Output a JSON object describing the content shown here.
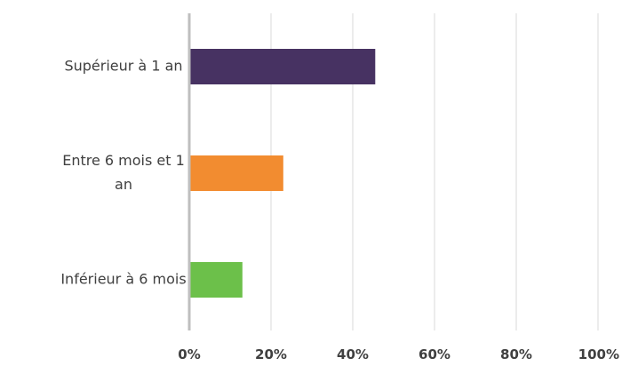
{
  "chart_data": {
    "type": "bar",
    "orientation": "horizontal",
    "categories": [
      {
        "lines": [
          "Supérieur à 1 an"
        ],
        "value": 0.455,
        "color": "#473262"
      },
      {
        "lines": [
          "Entre 6 mois et 1",
          "an"
        ],
        "value": 0.23,
        "color": "#F28C30"
      },
      {
        "lines": [
          "Inférieur à 6 mois"
        ],
        "value": 0.13,
        "color": "#6CC04A"
      }
    ],
    "xlim": [
      0,
      1
    ],
    "x_ticks": [
      {
        "value": 0,
        "label": "0%"
      },
      {
        "value": 0.2,
        "label": "20%"
      },
      {
        "value": 0.4,
        "label": "40%"
      },
      {
        "value": 0.6,
        "label": "60%"
      },
      {
        "value": 0.8,
        "label": "80%"
      },
      {
        "value": 1,
        "label": "100%"
      }
    ],
    "grid": true,
    "legend": "none"
  }
}
